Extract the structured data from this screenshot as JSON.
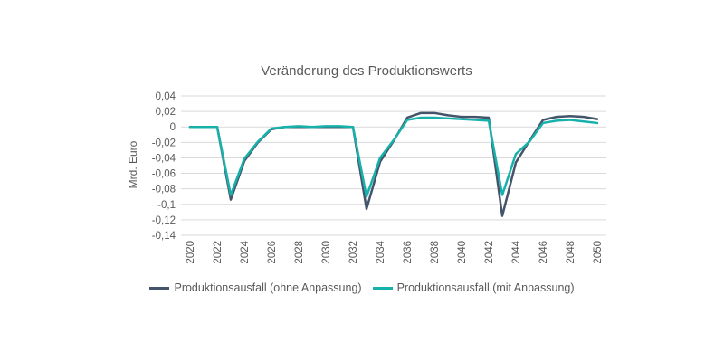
{
  "chart_data": {
    "type": "line",
    "title": "Veränderung des Produktionswerts",
    "ylabel": "Mrd. Euro",
    "xlabel": "",
    "ylim": [
      -0.14,
      0.04
    ],
    "y_ticks": [
      "0,04",
      "0,02",
      "0",
      "-0,02",
      "-0,04",
      "-0,06",
      "-0,08",
      "-0,1",
      "-0,12",
      "-0,14"
    ],
    "x_ticks": [
      "2020",
      "2022",
      "2024",
      "2026",
      "2028",
      "2030",
      "2032",
      "2034",
      "2036",
      "2038",
      "2040",
      "2042",
      "2044",
      "2046",
      "2048",
      "2050"
    ],
    "grid": "horizontal",
    "legend_position": "bottom",
    "x": [
      2020,
      2021,
      2022,
      2023,
      2024,
      2025,
      2026,
      2027,
      2028,
      2029,
      2030,
      2031,
      2032,
      2033,
      2034,
      2035,
      2036,
      2037,
      2038,
      2039,
      2040,
      2041,
      2042,
      2043,
      2044,
      2045,
      2046,
      2047,
      2048,
      2049,
      2050
    ],
    "series": [
      {
        "name": "Produktionsausfall (ohne Anpassung)",
        "color": "#44546A",
        "values": [
          0,
          0,
          0,
          -0.094,
          -0.044,
          -0.02,
          -0.003,
          0,
          0,
          0,
          0,
          0,
          0,
          -0.106,
          -0.045,
          -0.018,
          0.012,
          0.018,
          0.018,
          0.015,
          0.013,
          0.013,
          0.012,
          -0.115,
          -0.046,
          -0.018,
          0.009,
          0.013,
          0.014,
          0.013,
          0.01
        ]
      },
      {
        "name": "Produktionsausfall (mit Anpassung)",
        "color": "#17B1AC",
        "values": [
          0,
          0,
          0,
          -0.088,
          -0.041,
          -0.019,
          -0.002,
          0,
          0.001,
          0,
          0.001,
          0.001,
          0,
          -0.09,
          -0.04,
          -0.017,
          0.009,
          0.012,
          0.012,
          0.011,
          0.01,
          0.009,
          0.008,
          -0.088,
          -0.035,
          -0.019,
          0.005,
          0.008,
          0.009,
          0.007,
          0.005
        ]
      }
    ]
  }
}
